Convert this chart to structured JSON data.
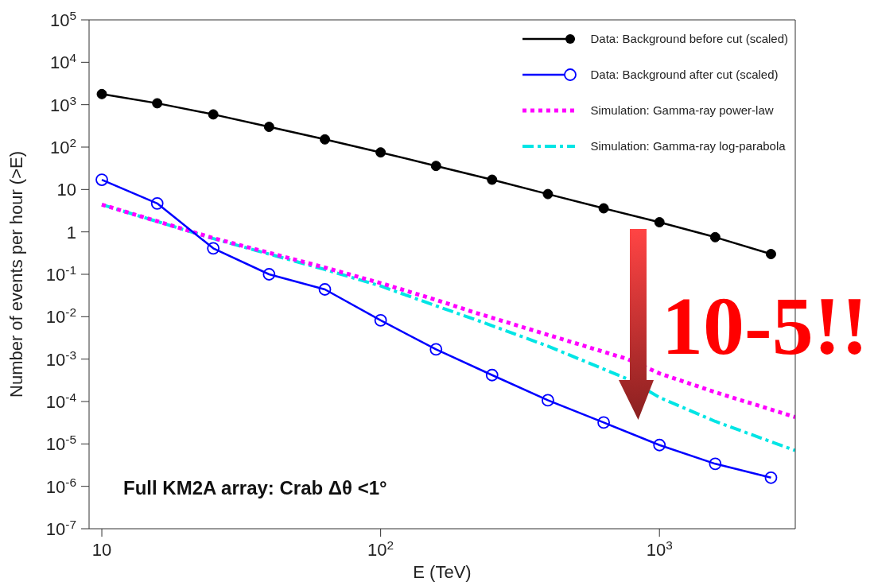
{
  "chart_data": {
    "type": "line",
    "xlabel": "E (TeV)",
    "ylabel": "Number of events per hour (>E)",
    "log": "xy",
    "xlim": [
      9,
      3070
    ],
    "ylim": [
      1e-07,
      100000
    ],
    "xticks": [
      10,
      {
        "value": 100,
        "label": "10$^{2}$"
      },
      {
        "value": 1000,
        "label": "10$^{3}$"
      }
    ],
    "yticks": [
      {
        "value": 1e-07,
        "label": "10$^{-7}$"
      },
      {
        "value": 1e-06,
        "label": "10$^{-6}$"
      },
      {
        "value": 1e-05,
        "label": "10$^{-5}$"
      },
      {
        "value": 0.0001,
        "label": "10$^{-4}$"
      },
      {
        "value": 0.001,
        "label": "10$^{-3}$"
      },
      {
        "value": 0.01,
        "label": "10$^{-2}$"
      },
      {
        "value": 0.1,
        "label": "10$^{-1}$"
      },
      1,
      10,
      {
        "value": 100,
        "label": "10$^{2}$"
      },
      {
        "value": 1000,
        "label": "10$^{3}$"
      },
      {
        "value": 10000,
        "label": "10$^{4}$"
      },
      {
        "value": 100000,
        "label": "10$^{5}$"
      }
    ],
    "legend": "top right",
    "series": [
      {
        "name": "Data: Background before cut (scaled)",
        "color": "#000000",
        "marker": "circle",
        "line_style": "solid",
        "x": [
          10,
          15.8,
          25.1,
          39.8,
          63.1,
          100,
          158,
          251,
          398,
          631,
          1000,
          1585,
          2512
        ],
        "values": [
          1780,
          1080,
          590,
          300,
          152,
          75,
          36,
          17,
          7.8,
          3.6,
          1.69,
          0.75,
          0.3
        ]
      },
      {
        "name": "Data: Background after cut (scaled)",
        "color": "#0000ff",
        "marker": "open circle",
        "line_style": "solid",
        "x": [
          10,
          15.8,
          25.1,
          39.8,
          63.1,
          100,
          158,
          251,
          398,
          631,
          1000,
          1585,
          2512
        ],
        "values": [
          17,
          4.7,
          0.41,
          0.1,
          0.044,
          0.0082,
          0.0017,
          0.00042,
          0.000107,
          3.2e-05,
          9.4e-06,
          3.4e-06,
          1.6e-06
        ]
      },
      {
        "name": "Simulation: Gamma-ray power-law",
        "color": "#ff00ff",
        "marker": "none",
        "line_style": "dotted",
        "x": [
          10,
          25,
          63,
          100,
          158,
          214,
          400,
          769,
          1000,
          1585,
          3070
        ],
        "values": [
          4.4,
          0.72,
          0.145,
          0.062,
          0.025,
          0.013,
          0.0037,
          0.001,
          0.00046,
          0.000166,
          4.3e-05
        ]
      },
      {
        "name": "Simulation: Gamma-ray log-parabola",
        "color": "#00e5e5",
        "marker": "none",
        "line_style": "dashdot",
        "x": [
          10,
          25,
          63,
          100,
          158,
          214,
          400,
          769,
          1000,
          1585,
          3070
        ],
        "values": [
          4.4,
          0.7,
          0.13,
          0.053,
          0.018,
          0.009,
          0.002,
          0.00034,
          0.000125,
          3.4e-05,
          7e-06
        ]
      }
    ],
    "annotations": [
      "Full KM2A array: Crab  Δθ <1°",
      "10-5!!"
    ]
  }
}
